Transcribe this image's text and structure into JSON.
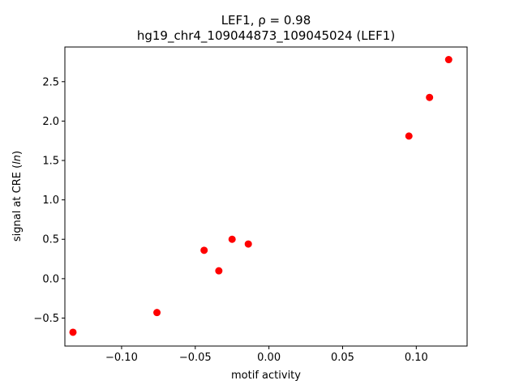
{
  "chart_data": {
    "type": "scatter",
    "title_line1": "LEF1, ρ = 0.98",
    "title_line2": "hg19_chr4_109044873_109045024 (LEF1)",
    "xlabel": "motif activity",
    "ylabel_prefix": "signal at CRE (",
    "ylabel_italic": "ln",
    "ylabel_suffix": ")",
    "xlim": [
      -0.1385,
      0.1345
    ],
    "ylim": [
      -0.855,
      2.94
    ],
    "x_ticks": [
      -0.1,
      -0.05,
      0.0,
      0.05,
      0.1
    ],
    "x_tick_labels": [
      "−0.10",
      "−0.05",
      "0.00",
      "0.05",
      "0.10"
    ],
    "y_ticks": [
      -0.5,
      0.0,
      0.5,
      1.0,
      1.5,
      2.0,
      2.5
    ],
    "y_tick_labels": [
      "−0.5",
      "0.0",
      "0.5",
      "1.0",
      "1.5",
      "2.0",
      "2.5"
    ],
    "grid": false,
    "point_color": "#ff0000",
    "points": [
      {
        "x": -0.133,
        "y": -0.68
      },
      {
        "x": -0.076,
        "y": -0.43
      },
      {
        "x": -0.044,
        "y": 0.36
      },
      {
        "x": -0.034,
        "y": 0.1
      },
      {
        "x": -0.025,
        "y": 0.5
      },
      {
        "x": -0.014,
        "y": 0.44
      },
      {
        "x": 0.095,
        "y": 1.81
      },
      {
        "x": 0.109,
        "y": 2.3
      },
      {
        "x": 0.122,
        "y": 2.78
      }
    ]
  }
}
